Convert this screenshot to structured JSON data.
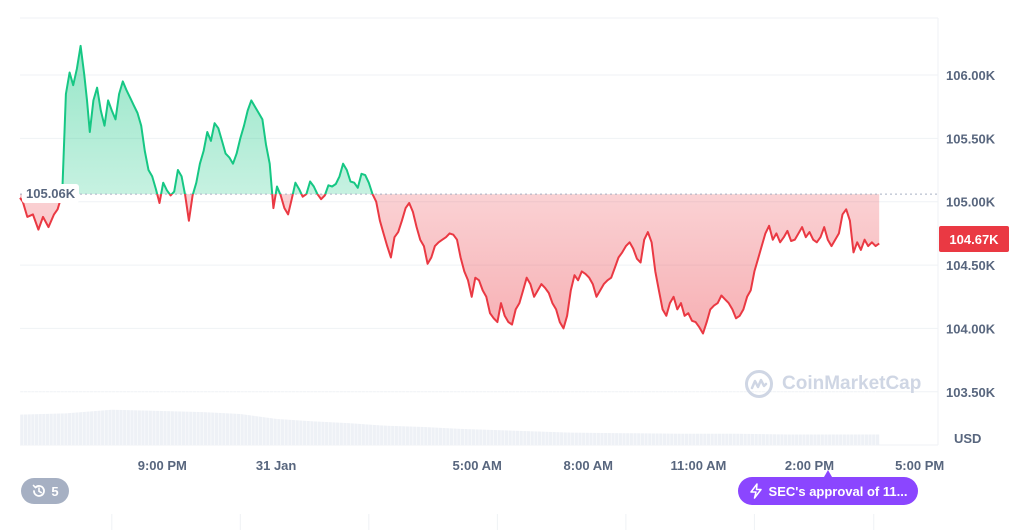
{
  "chart_data": {
    "type": "area",
    "currency": "USD",
    "ylim": [
      103080,
      106450
    ],
    "y_ticks": [
      103500,
      104000,
      104500,
      105000,
      105500,
      106000
    ],
    "y_tick_labels": [
      "103.50K",
      "104.00K",
      "104.50K",
      "105.00K",
      "105.50K",
      "106.00K"
    ],
    "x_tick_labels": [
      {
        "label": "9:00 PM",
        "t": 0.155
      },
      {
        "label": "31 Jan",
        "t": 0.279
      },
      {
        "label": "5:00 AM",
        "t": 0.498
      },
      {
        "label": "8:00 AM",
        "t": 0.619
      },
      {
        "label": "11:00 AM",
        "t": 0.739
      },
      {
        "label": "2:00 PM",
        "t": 0.86
      },
      {
        "label": "5:00 PM",
        "t": 0.98
      }
    ],
    "baseline": 105060,
    "baseline_label": "105.06K",
    "current_value": 104670,
    "current_label": "104.67K",
    "up_color": "#16c784",
    "down_color": "#ea3943",
    "series": [
      {
        "values": [
          [
            0.0,
            105030
          ],
          [
            0.003,
            105000
          ],
          [
            0.008,
            104880
          ],
          [
            0.014,
            104900
          ],
          [
            0.02,
            104780
          ],
          [
            0.025,
            104880
          ],
          [
            0.031,
            104800
          ],
          [
            0.037,
            104900
          ],
          [
            0.041,
            104940
          ],
          [
            0.046,
            105060
          ],
          [
            0.05,
            105850
          ],
          [
            0.054,
            106020
          ],
          [
            0.058,
            105920
          ],
          [
            0.062,
            106050
          ],
          [
            0.066,
            106230
          ],
          [
            0.07,
            106000
          ],
          [
            0.073,
            105800
          ],
          [
            0.076,
            105550
          ],
          [
            0.08,
            105800
          ],
          [
            0.084,
            105900
          ],
          [
            0.088,
            105720
          ],
          [
            0.092,
            105600
          ],
          [
            0.096,
            105800
          ],
          [
            0.1,
            105720
          ],
          [
            0.104,
            105650
          ],
          [
            0.108,
            105850
          ],
          [
            0.112,
            105950
          ],
          [
            0.116,
            105880
          ],
          [
            0.12,
            105820
          ],
          [
            0.124,
            105760
          ],
          [
            0.128,
            105700
          ],
          [
            0.132,
            105600
          ],
          [
            0.136,
            105400
          ],
          [
            0.14,
            105250
          ],
          [
            0.144,
            105200
          ],
          [
            0.148,
            105100
          ],
          [
            0.152,
            104990
          ],
          [
            0.156,
            105150
          ],
          [
            0.16,
            105090
          ],
          [
            0.164,
            105050
          ],
          [
            0.168,
            105080
          ],
          [
            0.172,
            105250
          ],
          [
            0.176,
            105200
          ],
          [
            0.18,
            105050
          ],
          [
            0.184,
            104850
          ],
          [
            0.188,
            105050
          ],
          [
            0.192,
            105150
          ],
          [
            0.196,
            105300
          ],
          [
            0.2,
            105400
          ],
          [
            0.204,
            105550
          ],
          [
            0.208,
            105480
          ],
          [
            0.212,
            105620
          ],
          [
            0.216,
            105580
          ],
          [
            0.22,
            105480
          ],
          [
            0.224,
            105380
          ],
          [
            0.228,
            105350
          ],
          [
            0.232,
            105300
          ],
          [
            0.236,
            105380
          ],
          [
            0.24,
            105500
          ],
          [
            0.244,
            105600
          ],
          [
            0.248,
            105720
          ],
          [
            0.252,
            105800
          ],
          [
            0.256,
            105750
          ],
          [
            0.26,
            105700
          ],
          [
            0.264,
            105650
          ],
          [
            0.268,
            105450
          ],
          [
            0.272,
            105300
          ],
          [
            0.276,
            104950
          ],
          [
            0.28,
            105120
          ],
          [
            0.284,
            105050
          ],
          [
            0.288,
            104950
          ],
          [
            0.292,
            104900
          ],
          [
            0.296,
            105020
          ],
          [
            0.3,
            105150
          ],
          [
            0.304,
            105100
          ],
          [
            0.308,
            105040
          ],
          [
            0.312,
            105060
          ],
          [
            0.316,
            105160
          ],
          [
            0.32,
            105120
          ],
          [
            0.324,
            105060
          ],
          [
            0.328,
            105020
          ],
          [
            0.332,
            105050
          ],
          [
            0.336,
            105130
          ],
          [
            0.34,
            105120
          ],
          [
            0.344,
            105140
          ],
          [
            0.348,
            105200
          ],
          [
            0.352,
            105300
          ],
          [
            0.356,
            105250
          ],
          [
            0.36,
            105160
          ],
          [
            0.364,
            105150
          ],
          [
            0.368,
            105110
          ],
          [
            0.372,
            105220
          ],
          [
            0.376,
            105210
          ],
          [
            0.38,
            105150
          ],
          [
            0.384,
            105060
          ],
          [
            0.388,
            105000
          ],
          [
            0.392,
            104850
          ],
          [
            0.396,
            104750
          ],
          [
            0.4,
            104650
          ],
          [
            0.404,
            104560
          ],
          [
            0.408,
            104720
          ],
          [
            0.412,
            104760
          ],
          [
            0.416,
            104850
          ],
          [
            0.42,
            104950
          ],
          [
            0.424,
            104990
          ],
          [
            0.428,
            104920
          ],
          [
            0.432,
            104800
          ],
          [
            0.436,
            104700
          ],
          [
            0.44,
            104650
          ],
          [
            0.444,
            104510
          ],
          [
            0.448,
            104560
          ],
          [
            0.452,
            104650
          ],
          [
            0.456,
            104680
          ],
          [
            0.46,
            104700
          ],
          [
            0.464,
            104720
          ],
          [
            0.468,
            104750
          ],
          [
            0.472,
            104740
          ],
          [
            0.476,
            104700
          ],
          [
            0.48,
            104560
          ],
          [
            0.484,
            104450
          ],
          [
            0.488,
            104380
          ],
          [
            0.492,
            104250
          ],
          [
            0.496,
            104400
          ],
          [
            0.5,
            104380
          ],
          [
            0.504,
            104300
          ],
          [
            0.508,
            104250
          ],
          [
            0.512,
            104120
          ],
          [
            0.516,
            104080
          ],
          [
            0.52,
            104050
          ],
          [
            0.524,
            104200
          ],
          [
            0.528,
            104100
          ],
          [
            0.532,
            104050
          ],
          [
            0.536,
            104030
          ],
          [
            0.54,
            104150
          ],
          [
            0.544,
            104200
          ],
          [
            0.548,
            104300
          ],
          [
            0.552,
            104400
          ],
          [
            0.556,
            104350
          ],
          [
            0.56,
            104250
          ],
          [
            0.564,
            104300
          ],
          [
            0.568,
            104350
          ],
          [
            0.572,
            104320
          ],
          [
            0.576,
            104280
          ],
          [
            0.58,
            104200
          ],
          [
            0.584,
            104150
          ],
          [
            0.588,
            104050
          ],
          [
            0.592,
            104000
          ],
          [
            0.596,
            104100
          ],
          [
            0.6,
            104300
          ],
          [
            0.604,
            104420
          ],
          [
            0.608,
            104380
          ],
          [
            0.612,
            104450
          ],
          [
            0.616,
            104430
          ],
          [
            0.62,
            104400
          ],
          [
            0.624,
            104350
          ],
          [
            0.628,
            104250
          ],
          [
            0.632,
            104300
          ],
          [
            0.636,
            104350
          ],
          [
            0.64,
            104380
          ],
          [
            0.644,
            104400
          ],
          [
            0.648,
            104480
          ],
          [
            0.652,
            104560
          ],
          [
            0.656,
            104600
          ],
          [
            0.66,
            104650
          ],
          [
            0.664,
            104680
          ],
          [
            0.668,
            104630
          ],
          [
            0.672,
            104550
          ],
          [
            0.676,
            104520
          ],
          [
            0.68,
            104700
          ],
          [
            0.684,
            104760
          ],
          [
            0.688,
            104680
          ],
          [
            0.692,
            104450
          ],
          [
            0.696,
            104300
          ],
          [
            0.7,
            104150
          ],
          [
            0.704,
            104100
          ],
          [
            0.708,
            104200
          ],
          [
            0.712,
            104250
          ],
          [
            0.716,
            104150
          ],
          [
            0.72,
            104200
          ],
          [
            0.724,
            104100
          ],
          [
            0.728,
            104120
          ],
          [
            0.732,
            104060
          ],
          [
            0.736,
            104050
          ],
          [
            0.74,
            104010
          ],
          [
            0.744,
            103960
          ],
          [
            0.748,
            104050
          ],
          [
            0.752,
            104150
          ],
          [
            0.756,
            104180
          ],
          [
            0.76,
            104200
          ],
          [
            0.764,
            104260
          ],
          [
            0.768,
            104230
          ],
          [
            0.772,
            104200
          ],
          [
            0.776,
            104150
          ],
          [
            0.78,
            104080
          ],
          [
            0.784,
            104100
          ],
          [
            0.788,
            104150
          ],
          [
            0.792,
            104250
          ],
          [
            0.796,
            104300
          ],
          [
            0.8,
            104450
          ],
          [
            0.804,
            104550
          ],
          [
            0.808,
            104650
          ],
          [
            0.812,
            104750
          ],
          [
            0.816,
            104810
          ],
          [
            0.82,
            104700
          ],
          [
            0.824,
            104750
          ],
          [
            0.828,
            104680
          ],
          [
            0.832,
            104720
          ],
          [
            0.836,
            104770
          ],
          [
            0.84,
            104690
          ],
          [
            0.844,
            104700
          ],
          [
            0.848,
            104750
          ],
          [
            0.852,
            104800
          ],
          [
            0.856,
            104720
          ],
          [
            0.86,
            104760
          ],
          [
            0.864,
            104700
          ],
          [
            0.868,
            104680
          ],
          [
            0.872,
            104720
          ],
          [
            0.876,
            104800
          ],
          [
            0.88,
            104700
          ],
          [
            0.884,
            104650
          ],
          [
            0.888,
            104700
          ],
          [
            0.892,
            104750
          ],
          [
            0.896,
            104900
          ],
          [
            0.9,
            104940
          ],
          [
            0.904,
            104850
          ],
          [
            0.908,
            104600
          ],
          [
            0.912,
            104680
          ],
          [
            0.916,
            104620
          ],
          [
            0.92,
            104700
          ],
          [
            0.924,
            104650
          ],
          [
            0.928,
            104680
          ],
          [
            0.932,
            104650
          ],
          [
            0.936,
            104670
          ]
        ]
      }
    ],
    "volume": [
      [
        0.0,
        0.49
      ],
      [
        0.05,
        0.51
      ],
      [
        0.1,
        0.57
      ],
      [
        0.15,
        0.55
      ],
      [
        0.2,
        0.53
      ],
      [
        0.24,
        0.5
      ],
      [
        0.28,
        0.42
      ],
      [
        0.32,
        0.38
      ],
      [
        0.36,
        0.35
      ],
      [
        0.4,
        0.31
      ],
      [
        0.44,
        0.29
      ],
      [
        0.48,
        0.26
      ],
      [
        0.52,
        0.24
      ],
      [
        0.56,
        0.22
      ],
      [
        0.6,
        0.2
      ],
      [
        0.66,
        0.19
      ],
      [
        0.72,
        0.18
      ],
      [
        0.78,
        0.18
      ],
      [
        0.84,
        0.17
      ],
      [
        0.9,
        0.17
      ],
      [
        0.936,
        0.17
      ]
    ],
    "grid": true,
    "legend": "none"
  },
  "ui": {
    "history_count": "5",
    "history_icon": "history-clock-icon",
    "event_label": "SEC's approval of 11...",
    "event_icon": "lightning-icon",
    "watermark": "CoinMarketCap",
    "usd_label": "USD"
  }
}
